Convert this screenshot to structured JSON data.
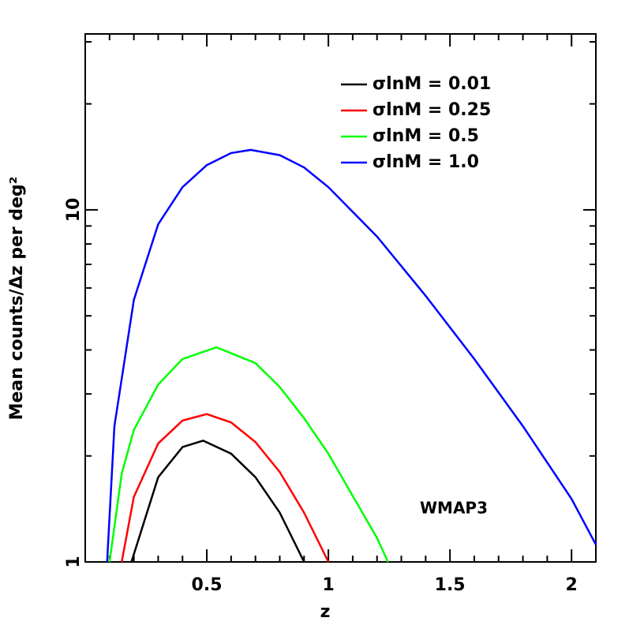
{
  "chart_data": {
    "type": "line",
    "xlabel": "z",
    "ylabel": "Mean counts/Δz per deg²",
    "annotation": "WMAP3",
    "log_y": true,
    "xlim": [
      0,
      2.1
    ],
    "ylim": [
      1,
      31.6
    ],
    "xticks": [
      0.5,
      1,
      1.5,
      2
    ],
    "xminorticks": [
      0.1,
      0.2,
      0.3,
      0.4,
      0.6,
      0.7,
      0.8,
      0.9,
      1.1,
      1.2,
      1.3,
      1.4,
      1.6,
      1.7,
      1.8,
      1.9,
      2.1
    ],
    "yticks": [
      1,
      10
    ],
    "yminorticks": [
      2,
      3,
      4,
      5,
      6,
      7,
      8,
      9,
      20,
      30
    ],
    "legend": "upper right",
    "series": [
      {
        "name": "σlnM = 0.01",
        "color": "#000000",
        "x": [
          0.19,
          0.3,
          0.4,
          0.485,
          0.6,
          0.7,
          0.8,
          0.9
        ],
        "values": [
          1.0,
          1.74,
          2.12,
          2.21,
          2.03,
          1.74,
          1.38,
          1.0
        ]
      },
      {
        "name": "σlnM = 0.25",
        "color": "#ff0000",
        "x": [
          0.15,
          0.2,
          0.3,
          0.4,
          0.5,
          0.6,
          0.7,
          0.8,
          0.9,
          1.0
        ],
        "values": [
          1.0,
          1.53,
          2.17,
          2.52,
          2.63,
          2.49,
          2.19,
          1.8,
          1.38,
          1.0
        ]
      },
      {
        "name": "σlnM = 0.5",
        "color": "#00ff00",
        "x": [
          0.1,
          0.15,
          0.2,
          0.3,
          0.4,
          0.54,
          0.7,
          0.8,
          0.9,
          1.0,
          1.1,
          1.2,
          1.245
        ],
        "values": [
          1.0,
          1.78,
          2.37,
          3.19,
          3.77,
          4.07,
          3.67,
          3.14,
          2.56,
          2.03,
          1.54,
          1.17,
          1.0
        ]
      },
      {
        "name": "σlnM = 1.0",
        "color": "#0000ff",
        "x": [
          0.09,
          0.12,
          0.2,
          0.3,
          0.4,
          0.5,
          0.6,
          0.68,
          0.8,
          0.9,
          1.0,
          1.2,
          1.4,
          1.6,
          1.8,
          2.0,
          2.1
        ],
        "values": [
          1.0,
          2.43,
          5.55,
          9.1,
          11.6,
          13.4,
          14.5,
          14.8,
          14.3,
          13.2,
          11.6,
          8.4,
          5.7,
          3.77,
          2.43,
          1.51,
          1.12
        ]
      }
    ]
  }
}
